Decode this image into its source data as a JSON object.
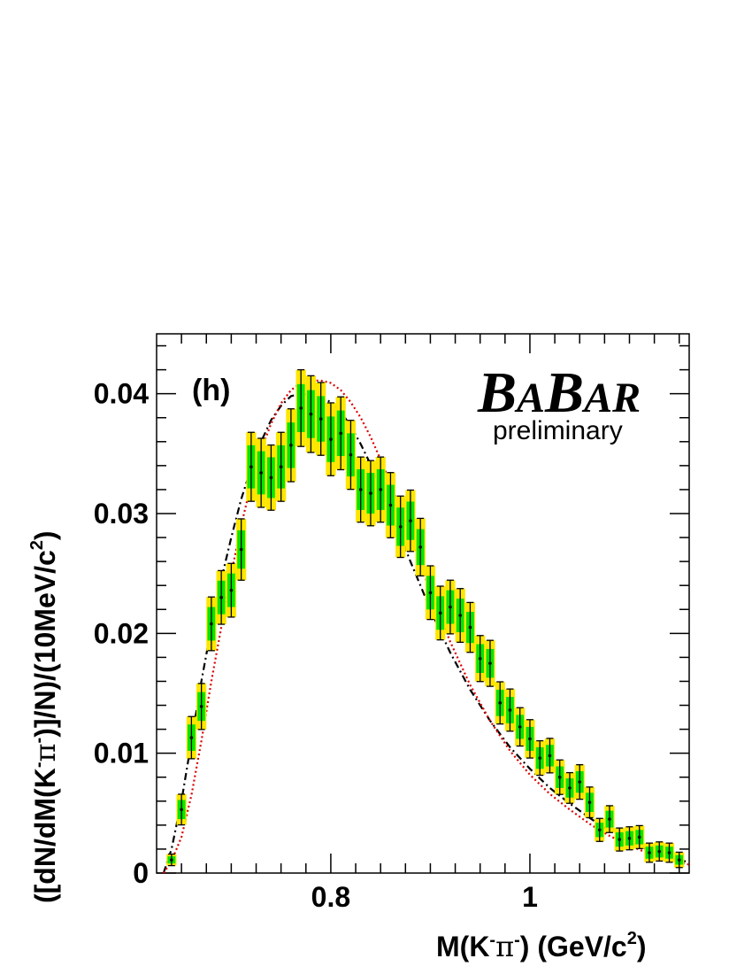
{
  "chart_data": {
    "type": "scatter",
    "xlabel_parts": [
      "M(K",
      "-",
      "π",
      "-",
      ") (GeV/c",
      "2",
      ")"
    ],
    "ylabel_parts": [
      "([dN/dM(K",
      "-",
      "π",
      "-",
      ")]/N)/(10MeV/c",
      "2",
      ")"
    ],
    "panel_label": "(h)",
    "brand": {
      "b1": "B",
      "a1": "A",
      "b2": "B",
      "ar": "AR",
      "sub": "preliminary"
    },
    "xlim": [
      0.625,
      1.16
    ],
    "ylim": [
      0,
      0.045
    ],
    "x_ticks": [
      {
        "value": 0.8,
        "label": "0.8"
      },
      {
        "value": 1.0,
        "label": "1"
      }
    ],
    "y_ticks": [
      {
        "value": 0,
        "label": "0"
      },
      {
        "value": 0.01,
        "label": "0.01"
      },
      {
        "value": 0.02,
        "label": "0.02"
      },
      {
        "value": 0.03,
        "label": "0.03"
      },
      {
        "value": 0.04,
        "label": "0.04"
      }
    ],
    "bin_width": 0.01,
    "colors": {
      "stat_band": "#00e600",
      "syst_band": "#ffe600",
      "model_a": "#000000",
      "model_b": "#dd0000"
    },
    "series": [
      {
        "type": "data",
        "x": [
          0.64,
          0.65,
          0.66,
          0.67,
          0.68,
          0.69,
          0.7,
          0.71,
          0.72,
          0.73,
          0.74,
          0.75,
          0.76,
          0.77,
          0.78,
          0.79,
          0.8,
          0.81,
          0.82,
          0.83,
          0.84,
          0.85,
          0.86,
          0.87,
          0.88,
          0.89,
          0.9,
          0.91,
          0.92,
          0.93,
          0.94,
          0.95,
          0.96,
          0.97,
          0.98,
          0.99,
          1.0,
          1.01,
          1.02,
          1.03,
          1.04,
          1.05,
          1.06,
          1.07,
          1.08,
          1.09,
          1.1,
          1.11,
          1.12,
          1.13,
          1.14,
          1.15
        ],
        "y": [
          0.0011,
          0.0053,
          0.0113,
          0.0139,
          0.0208,
          0.023,
          0.0236,
          0.027,
          0.0339,
          0.0334,
          0.033,
          0.0339,
          0.0357,
          0.0388,
          0.0383,
          0.0379,
          0.0362,
          0.0367,
          0.0349,
          0.032,
          0.0317,
          0.032,
          0.0307,
          0.0289,
          0.0294,
          0.0272,
          0.0234,
          0.0217,
          0.0222,
          0.0215,
          0.0205,
          0.0179,
          0.0175,
          0.0142,
          0.0136,
          0.0122,
          0.0112,
          0.0096,
          0.0098,
          0.008,
          0.0071,
          0.0076,
          0.0059,
          0.0036,
          0.0045,
          0.0028,
          0.0029,
          0.003,
          0.0017,
          0.0018,
          0.0017,
          0.0011
        ],
        "stat_err": [
          0.0003,
          0.0008,
          0.0011,
          0.0012,
          0.0014,
          0.0014,
          0.0014,
          0.0016,
          0.0018,
          0.0018,
          0.0017,
          0.0018,
          0.0019,
          0.002,
          0.002,
          0.0019,
          0.0019,
          0.0019,
          0.0018,
          0.0017,
          0.0017,
          0.0017,
          0.0017,
          0.0016,
          0.0016,
          0.0015,
          0.0014,
          0.0014,
          0.0014,
          0.0014,
          0.0013,
          0.0012,
          0.0012,
          0.0011,
          0.0011,
          0.001,
          0.001,
          0.0009,
          0.0009,
          0.0009,
          0.0008,
          0.0009,
          0.0008,
          0.0006,
          0.0007,
          0.0006,
          0.0006,
          0.0006,
          0.0005,
          0.0005,
          0.0005,
          0.0004
        ]
      },
      {
        "type": "dashdot",
        "color": "#000000",
        "x": [
          0.632,
          0.64,
          0.65,
          0.66,
          0.67,
          0.68,
          0.69,
          0.7,
          0.71,
          0.72,
          0.73,
          0.74,
          0.75,
          0.76,
          0.77,
          0.78,
          0.79,
          0.8,
          0.81,
          0.82,
          0.83,
          0.84,
          0.85,
          0.86,
          0.87,
          0.88,
          0.89,
          0.9,
          0.92,
          0.94,
          0.96,
          0.98,
          1.0,
          1.02,
          1.04,
          1.06,
          1.08,
          1.1,
          1.12,
          1.14,
          1.16
        ],
        "y": [
          0.0,
          0.002,
          0.006,
          0.011,
          0.016,
          0.0205,
          0.0245,
          0.028,
          0.0312,
          0.0338,
          0.036,
          0.0378,
          0.039,
          0.0398,
          0.04,
          0.0399,
          0.0397,
          0.0393,
          0.0385,
          0.0373,
          0.0358,
          0.0341,
          0.0322,
          0.0302,
          0.0281,
          0.026,
          0.024,
          0.022,
          0.0184,
          0.0153,
          0.0127,
          0.0105,
          0.0087,
          0.0071,
          0.0058,
          0.0046,
          0.0035,
          0.0026,
          0.0019,
          0.0013,
          0.0009
        ]
      },
      {
        "type": "dotted",
        "color": "#dd0000",
        "x": [
          0.632,
          0.64,
          0.65,
          0.66,
          0.67,
          0.68,
          0.69,
          0.7,
          0.71,
          0.72,
          0.73,
          0.74,
          0.75,
          0.76,
          0.77,
          0.78,
          0.79,
          0.8,
          0.81,
          0.82,
          0.83,
          0.84,
          0.85,
          0.86,
          0.87,
          0.88,
          0.89,
          0.9,
          0.92,
          0.94,
          0.96,
          0.98,
          1.0,
          1.02,
          1.04,
          1.06,
          1.08,
          1.1,
          1.12,
          1.14,
          1.16
        ],
        "y": [
          0.0,
          0.001,
          0.003,
          0.0065,
          0.011,
          0.016,
          0.0205,
          0.025,
          0.029,
          0.0325,
          0.0353,
          0.0375,
          0.0392,
          0.0403,
          0.0409,
          0.0411,
          0.0411,
          0.0409,
          0.0403,
          0.0393,
          0.038,
          0.0364,
          0.0345,
          0.0325,
          0.0303,
          0.0281,
          0.0258,
          0.0235,
          0.0193,
          0.0157,
          0.0127,
          0.0102,
          0.0082,
          0.0066,
          0.0053,
          0.0041,
          0.0031,
          0.0023,
          0.0016,
          0.0011,
          0.0007
        ]
      }
    ]
  }
}
